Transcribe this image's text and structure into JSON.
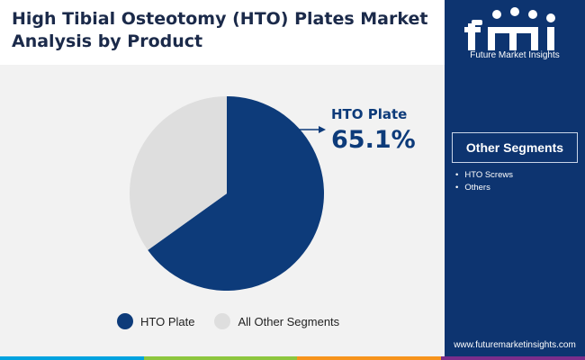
{
  "title_lines": [
    "High Tibial Osteotomy (HTO) Plates Market",
    "Analysis by Product"
  ],
  "chart_data": {
    "type": "pie",
    "title": "High Tibial Osteotomy (HTO) Plates Market Analysis by Product",
    "categories": [
      "HTO Plate",
      "All Other Segments"
    ],
    "values": [
      65.1,
      34.9
    ],
    "colors": [
      "#0d3b7a",
      "#dedede"
    ],
    "legend_position": "bottom",
    "annotation": {
      "label": "HTO Plate",
      "value": "65.1%"
    }
  },
  "legend": [
    {
      "label": "HTO Plate",
      "color": "#0d3b7a"
    },
    {
      "label": "All Other Segments",
      "color": "#dedede"
    }
  ],
  "sidebar": {
    "logo_icon": "fmi-logo-icon",
    "logo_text": "Future Market Insights",
    "segments_title": "Other Segments",
    "segments": [
      "HTO Screws",
      "Others"
    ],
    "website": "www.futuremarketinsights.com"
  },
  "footer_colors": [
    "#00a3e0",
    "#8dc63f",
    "#f7941d",
    "#7b2d8b"
  ]
}
